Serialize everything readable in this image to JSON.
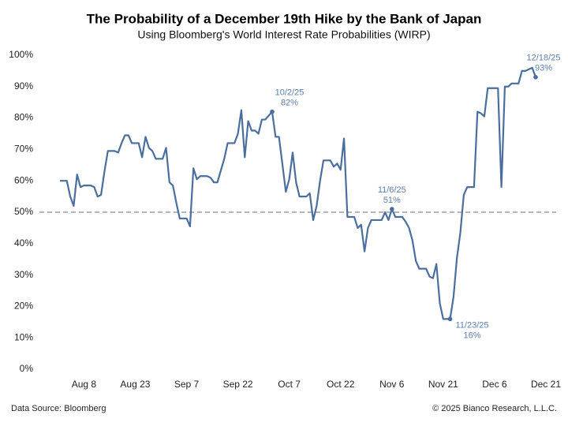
{
  "chart_data": {
    "type": "line",
    "title": "The Probability of a December 19th Hike by the Bank of Japan",
    "subtitle": "Using Bloomberg's World Interest Rate Probabilities (WIRP)",
    "x": [
      "2025-08-01",
      "2025-08-03",
      "2025-08-04",
      "2025-08-05",
      "2025-08-06",
      "2025-08-07",
      "2025-08-08",
      "2025-08-10",
      "2025-08-11",
      "2025-08-12",
      "2025-08-13",
      "2025-08-14",
      "2025-08-15",
      "2025-08-17",
      "2025-08-18",
      "2025-08-19",
      "2025-08-20",
      "2025-08-21",
      "2025-08-22",
      "2025-08-24",
      "2025-08-25",
      "2025-08-26",
      "2025-08-27",
      "2025-08-28",
      "2025-08-29",
      "2025-08-31",
      "2025-09-01",
      "2025-09-02",
      "2025-09-03",
      "2025-09-04",
      "2025-09-05",
      "2025-09-07",
      "2025-09-08",
      "2025-09-09",
      "2025-09-10",
      "2025-09-11",
      "2025-09-13",
      "2025-09-14",
      "2025-09-15",
      "2025-09-16",
      "2025-09-18",
      "2025-09-19",
      "2025-09-21",
      "2025-09-22",
      "2025-09-23",
      "2025-09-24",
      "2025-09-25",
      "2025-09-26",
      "2025-09-27",
      "2025-09-28",
      "2025-09-29",
      "2025-09-30",
      "2025-10-02",
      "2025-10-03",
      "2025-10-04",
      "2025-10-06",
      "2025-10-07",
      "2025-10-08",
      "2025-10-09",
      "2025-10-10",
      "2025-10-12",
      "2025-10-13",
      "2025-10-14",
      "2025-10-15",
      "2025-10-16",
      "2025-10-17",
      "2025-10-19",
      "2025-10-20",
      "2025-10-21",
      "2025-10-22",
      "2025-10-23",
      "2025-10-24",
      "2025-10-26",
      "2025-10-27",
      "2025-10-28",
      "2025-10-29",
      "2025-10-30",
      "2025-10-31",
      "2025-11-03",
      "2025-11-04",
      "2025-11-05",
      "2025-11-06",
      "2025-11-07",
      "2025-11-09",
      "2025-11-10",
      "2025-11-11",
      "2025-11-12",
      "2025-11-13",
      "2025-11-14",
      "2025-11-16",
      "2025-11-17",
      "2025-11-18",
      "2025-11-19",
      "2025-11-20",
      "2025-11-21",
      "2025-11-23",
      "2025-11-24",
      "2025-11-25",
      "2025-11-26",
      "2025-11-27",
      "2025-11-28",
      "2025-11-30",
      "2025-12-01",
      "2025-12-02",
      "2025-12-03",
      "2025-12-04",
      "2025-12-05",
      "2025-12-07",
      "2025-12-08",
      "2025-12-09",
      "2025-12-10",
      "2025-12-11",
      "2025-12-13",
      "2025-12-14",
      "2025-12-15",
      "2025-12-17",
      "2025-12-18"
    ],
    "series": [
      {
        "color": "#4a6f9e",
        "values": [
          60,
          60,
          55,
          52,
          62,
          58,
          58.5,
          58.5,
          58,
          55,
          55.5,
          63,
          69.5,
          69.5,
          69,
          72,
          74.5,
          74.5,
          72,
          72,
          67.5,
          74,
          70.5,
          69.5,
          67,
          67,
          70.5,
          59.5,
          58.5,
          53,
          48,
          48,
          45.5,
          64,
          60.5,
          61.5,
          61.5,
          61,
          59.5,
          59.5,
          67,
          72,
          72,
          75,
          82.5,
          67.5,
          79,
          76,
          76,
          75,
          79.5,
          79.5,
          82,
          74,
          74,
          56.5,
          60.5,
          69,
          59.5,
          55,
          55,
          56,
          47.5,
          52,
          60,
          66.5,
          66.5,
          64.5,
          65.5,
          63.5,
          73.5,
          48.5,
          48.5,
          45,
          46,
          37.5,
          45,
          47.5,
          47.5,
          50,
          47.5,
          51,
          48.5,
          48.5,
          47,
          45,
          41,
          34.5,
          32,
          32,
          29.5,
          29,
          33.5,
          21,
          16,
          16,
          23,
          35.5,
          43.5,
          55.5,
          58,
          58,
          82,
          81.5,
          80.5,
          89.5,
          89.5,
          89.5,
          58,
          90,
          90,
          91,
          91,
          95,
          95,
          96,
          93
        ]
      }
    ],
    "xlim": [
      "2025-07-26",
      "2025-12-24"
    ],
    "xticks": [
      {
        "value": "2025-08-08",
        "label": "Aug 8"
      },
      {
        "value": "2025-08-23",
        "label": "Aug 23"
      },
      {
        "value": "2025-09-07",
        "label": "Sep 7"
      },
      {
        "value": "2025-09-22",
        "label": "Sep 22"
      },
      {
        "value": "2025-10-07",
        "label": "Oct 7"
      },
      {
        "value": "2025-10-22",
        "label": "Oct 22"
      },
      {
        "value": "2025-11-06",
        "label": "Nov 6"
      },
      {
        "value": "2025-11-21",
        "label": "Nov 21"
      },
      {
        "value": "2025-12-06",
        "label": "Dec 6"
      },
      {
        "value": "2025-12-21",
        "label": "Dec 21"
      }
    ],
    "ylim": [
      -2,
      102
    ],
    "yticks": [
      {
        "value": 0,
        "label": "0%"
      },
      {
        "value": 10,
        "label": "10%"
      },
      {
        "value": 20,
        "label": "20%"
      },
      {
        "value": 30,
        "label": "30%"
      },
      {
        "value": 40,
        "label": "40%"
      },
      {
        "value": 50,
        "label": "50%"
      },
      {
        "value": 60,
        "label": "60%"
      },
      {
        "value": 70,
        "label": "70%"
      },
      {
        "value": 80,
        "label": "80%"
      },
      {
        "value": 90,
        "label": "90%"
      },
      {
        "value": 100,
        "label": "100%"
      }
    ],
    "grid": false,
    "reference_line": 50,
    "annotations": [
      {
        "x": "2025-10-02",
        "date": "10/2/25",
        "label": "82%",
        "position": "above"
      },
      {
        "x": "2025-11-06",
        "date": "11/6/25",
        "label": "51%",
        "position": "above"
      },
      {
        "x": "2025-11-23",
        "date": "11/23/25",
        "label": "16%",
        "position": "below"
      },
      {
        "x": "2025-12-18",
        "date": "12/18/25",
        "label": "93%",
        "position": "above"
      }
    ],
    "source": "Data Source: Bloomberg",
    "copyright": "© 2025 Bianco Research, L.L.C."
  }
}
